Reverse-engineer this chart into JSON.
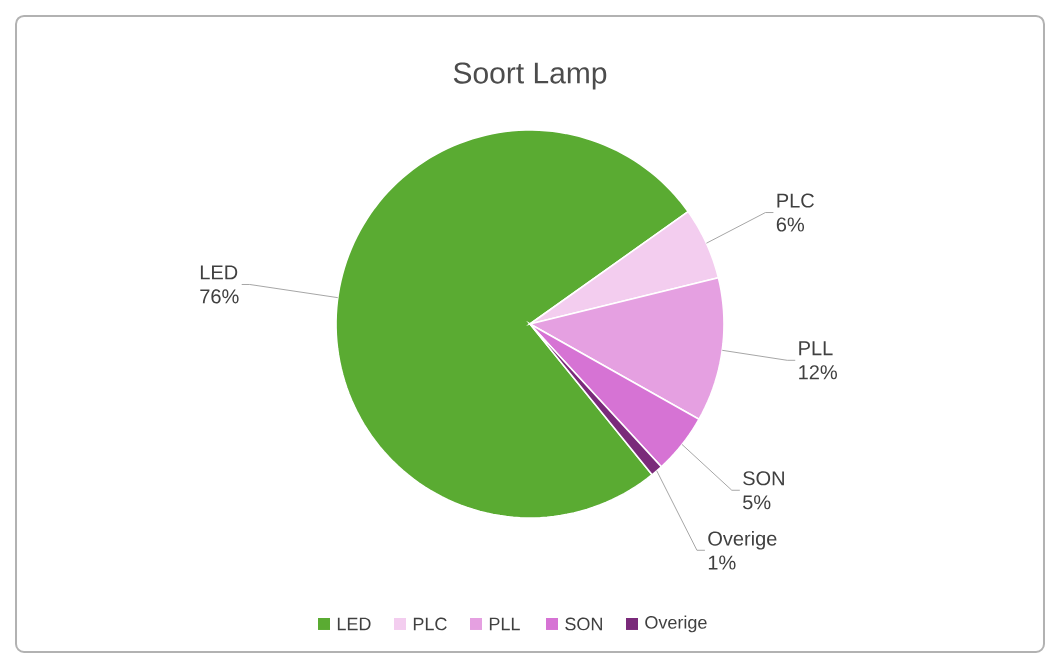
{
  "chart_data": {
    "type": "pie",
    "title": "Soort Lamp",
    "categories": [
      "LED",
      "PLC",
      "PLL",
      "SON",
      "Overige"
    ],
    "values": [
      76,
      6,
      12,
      5,
      1
    ],
    "value_labels": [
      "76%",
      "6%",
      "12%",
      "5%",
      "1%"
    ],
    "colors": [
      "#5aab32",
      "#f3cdef",
      "#e5a0e1",
      "#d673d4",
      "#7a2a7a"
    ],
    "legend": "bottom"
  }
}
